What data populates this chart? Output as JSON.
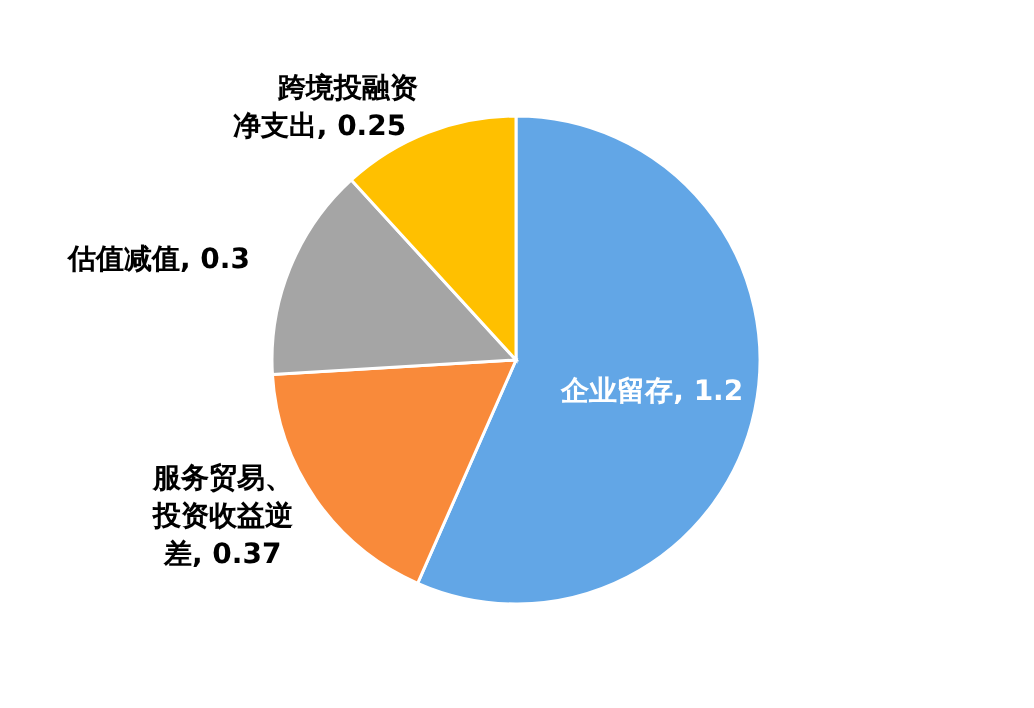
{
  "chart_data": {
    "type": "pie",
    "categories": [
      "企业留存",
      "服务贸易、投资收益逆差",
      "估值减值",
      "跨境投融资净支出"
    ],
    "values": [
      1.2,
      0.37,
      0.3,
      0.25
    ],
    "value_labels": [
      ", 1.2",
      ", 0.37",
      ", 0.3",
      ", 0.25"
    ],
    "colors": [
      "#62a6e6",
      "#f98a3a",
      "#a5a5a5",
      "#ffc000"
    ],
    "legend": false
  }
}
